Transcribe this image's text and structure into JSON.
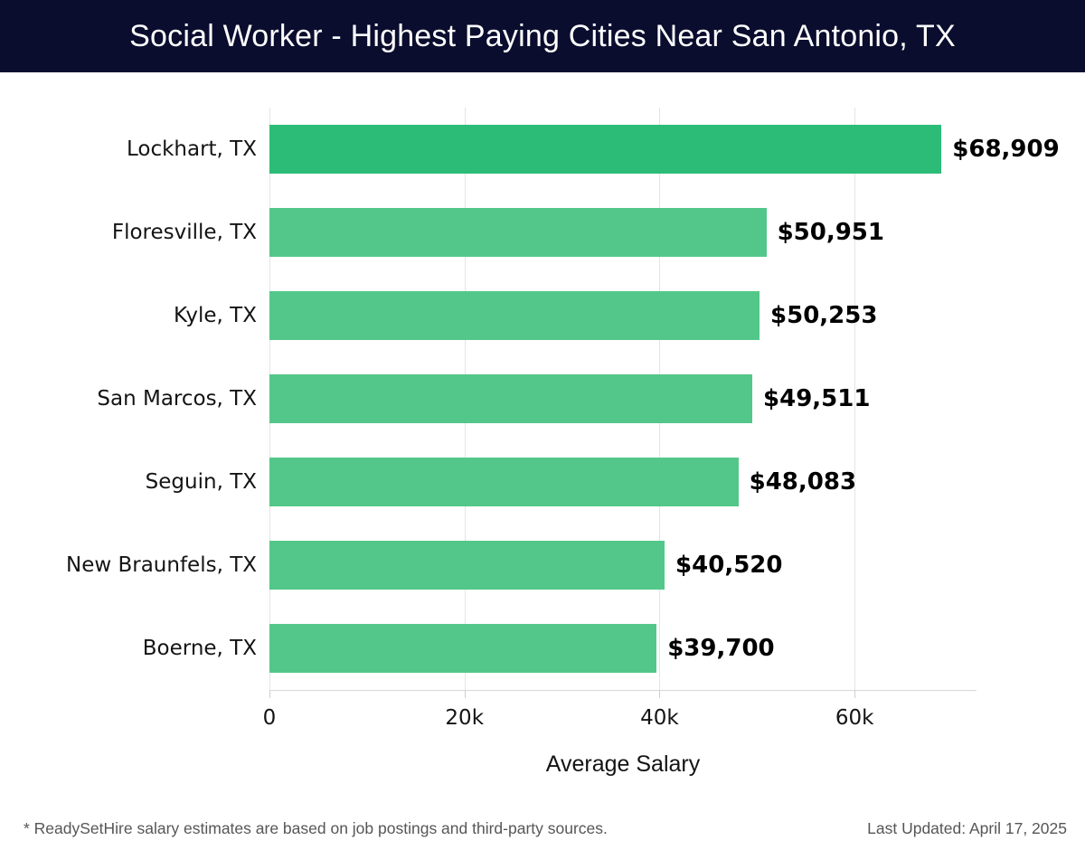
{
  "header": {
    "title": "Social Worker - Highest Paying Cities Near San Antonio, TX",
    "bg_color": "#0a0d2e"
  },
  "chart_data": {
    "type": "bar",
    "orientation": "horizontal",
    "title": "Social Worker - Highest Paying Cities Near San Antonio, TX",
    "categories": [
      "Lockhart, TX",
      "Floresville, TX",
      "Kyle, TX",
      "San Marcos, TX",
      "Seguin, TX",
      "New Braunfels, TX",
      "Boerne, TX"
    ],
    "values": [
      68909,
      50951,
      50253,
      49511,
      48083,
      40520,
      39700
    ],
    "value_labels": [
      "$68,909",
      "$50,951",
      "$50,253",
      "$49,511",
      "$48,083",
      "$40,520",
      "$39,700"
    ],
    "xlabel": "Average Salary",
    "ylabel": "",
    "x_tick_labels": [
      "0",
      "20k",
      "40k",
      "60k"
    ],
    "x_tick_values": [
      0,
      20000,
      40000,
      60000
    ],
    "xlim": [
      0,
      72500
    ],
    "grid": true,
    "legend": false,
    "highlight_bar_color": "#2cbc77",
    "bar_color": "#53c789"
  },
  "footer": {
    "note": "* ReadySetHire salary estimates are based on job postings and third-party sources.",
    "last_updated": "Last Updated: April 17, 2025"
  }
}
